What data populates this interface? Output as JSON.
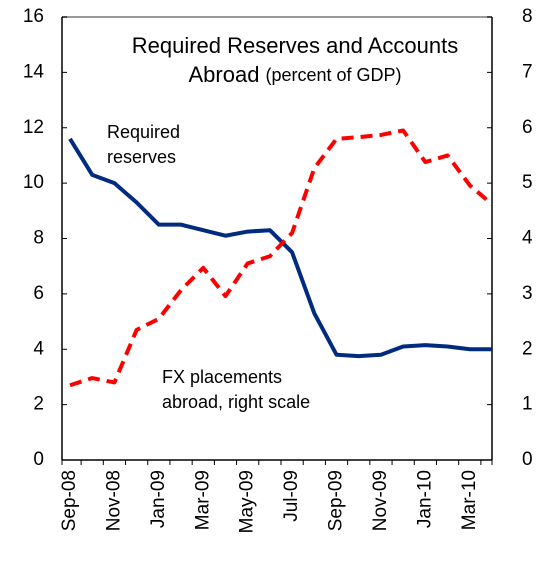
{
  "chart_data": {
    "type": "line",
    "title_lines": [
      "Required Reserves and Accounts",
      "Abroad"
    ],
    "subtitle": "(percent of GDP)",
    "annotations": [
      {
        "lines": [
          "Required",
          "reserves"
        ]
      },
      {
        "lines": [
          "FX placements",
          "abroad, right scale"
        ]
      }
    ],
    "categories": [
      "Sep-08",
      null,
      "Nov-08",
      null,
      "Jan-09",
      null,
      "Mar-09",
      null,
      "May-09",
      null,
      "Jul-09",
      null,
      "Sep-09",
      null,
      "Nov-09",
      null,
      "Jan-10",
      null,
      "Mar-10",
      null
    ],
    "series": [
      {
        "color": "#002b7f",
        "dash": false,
        "values": [
          11.6,
          10.3,
          10.0,
          9.3,
          8.5,
          8.5,
          8.3,
          8.1,
          8.25,
          8.3,
          7.5,
          5.3,
          3.8,
          3.75,
          3.8,
          4.1,
          4.15,
          4.1,
          4.0,
          4.0
        ]
      },
      {
        "color": "#ff0000",
        "dash": true,
        "axis": "y2",
        "values": [
          1.35,
          1.48,
          1.4,
          2.35,
          2.55,
          3.07,
          3.47,
          2.96,
          3.55,
          3.68,
          4.1,
          5.27,
          5.8,
          5.83,
          5.87,
          5.95,
          5.38,
          5.5,
          4.96,
          4.62
        ]
      }
    ],
    "ylim": [
      0,
      16
    ],
    "yticks": [
      0,
      2,
      4,
      6,
      8,
      10,
      12,
      14,
      16
    ],
    "y2lim": [
      0,
      8
    ],
    "y2ticks": [
      0,
      1,
      2,
      3,
      4,
      5,
      6,
      7,
      8
    ],
    "grid": false
  }
}
